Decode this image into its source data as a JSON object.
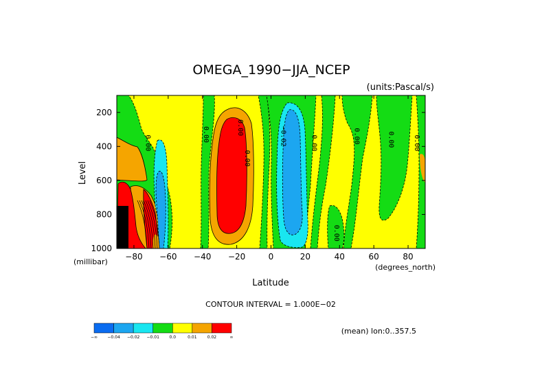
{
  "chart_data": {
    "type": "heatmap",
    "title": "OMEGA_1990−JJA_NCEP",
    "units_label": "(units:Pascal/s)",
    "xlabel": "Latitude",
    "ylabel": "Level",
    "y_unit_label": "(millibar)",
    "x_unit_label": "(degrees_north)",
    "xlim": [
      -90,
      90
    ],
    "ylim": [
      1000,
      100
    ],
    "x_ticks": [
      -80,
      -60,
      -40,
      -20,
      0,
      20,
      40,
      60,
      80
    ],
    "x_tick_labels": [
      "−80",
      "−60",
      "−40",
      "−20",
      "0",
      "20",
      "40",
      "60",
      "80"
    ],
    "y_ticks": [
      200,
      400,
      600,
      800,
      1000
    ],
    "y_tick_labels": [
      "200",
      "400",
      "600",
      "800",
      "1000"
    ],
    "contour_interval_text": "CONTOUR INTERVAL = 1.000E−02",
    "mean_text": "(mean) lon:0..357.5",
    "colorbar": {
      "colors": [
        "#0a6cf0",
        "#1ca6f0",
        "#19e6f0",
        "#14dc14",
        "#ffff00",
        "#f5a500",
        "#ff0000"
      ],
      "labels": [
        "−∞",
        "−0.04",
        "−0.02",
        "−0.01",
        "0.0",
        "0.01",
        "0.02",
        "∞"
      ]
    },
    "contour_labels": [
      {
        "text": "0.00",
        "lon": -73,
        "lev": 380
      },
      {
        "text": "0.00",
        "lon": -39,
        "lev": 330
      },
      {
        "text": "0.00",
        "lon": -19,
        "lev": 290
      },
      {
        "text": "0.00",
        "lon": -15,
        "lev": 470
      },
      {
        "text": "−0.02",
        "lon": 6,
        "lev": 340
      },
      {
        "text": "0.00",
        "lon": 24,
        "lev": 380
      },
      {
        "text": "0.00",
        "lon": 49,
        "lev": 340
      },
      {
        "text": "0.00",
        "lon": 69,
        "lev": 360
      },
      {
        "text": "0.00",
        "lon": 84,
        "lev": 380
      },
      {
        "text": "0.00",
        "lon": 37,
        "lev": 910
      }
    ],
    "regions": [
      {
        "name": "background",
        "level": "0.0",
        "color": "#ffff00"
      },
      {
        "name": "sh-subpolar-green",
        "level": "-0.01",
        "color": "#14dc14"
      },
      {
        "name": "sh-pole-orange",
        "level": "0.01",
        "color": "#f5a500"
      },
      {
        "name": "sh-cyan",
        "level": "-0.02",
        "color": "#19e6f0"
      },
      {
        "name": "sh-blue",
        "level": "-0.04",
        "color": "#1ca6f0"
      },
      {
        "name": "sh-red-spots",
        "level": "0.02",
        "color": "#ff0000"
      },
      {
        "name": "sh-missing",
        "level": "missing",
        "color": "#000000"
      },
      {
        "name": "subtropical-descent-orange",
        "level": "0.01",
        "color": "#f5a500"
      },
      {
        "name": "subtropical-descent-red",
        "level": "0.02",
        "color": "#ff0000"
      },
      {
        "name": "itcz-green",
        "level": "-0.01",
        "color": "#14dc14"
      },
      {
        "name": "itcz-cyan",
        "level": "-0.02",
        "color": "#19e6f0"
      },
      {
        "name": "itcz-blue",
        "level": "-0.04",
        "color": "#1ca6f0"
      },
      {
        "name": "nh-green-bands",
        "level": "-0.01",
        "color": "#14dc14"
      }
    ]
  }
}
